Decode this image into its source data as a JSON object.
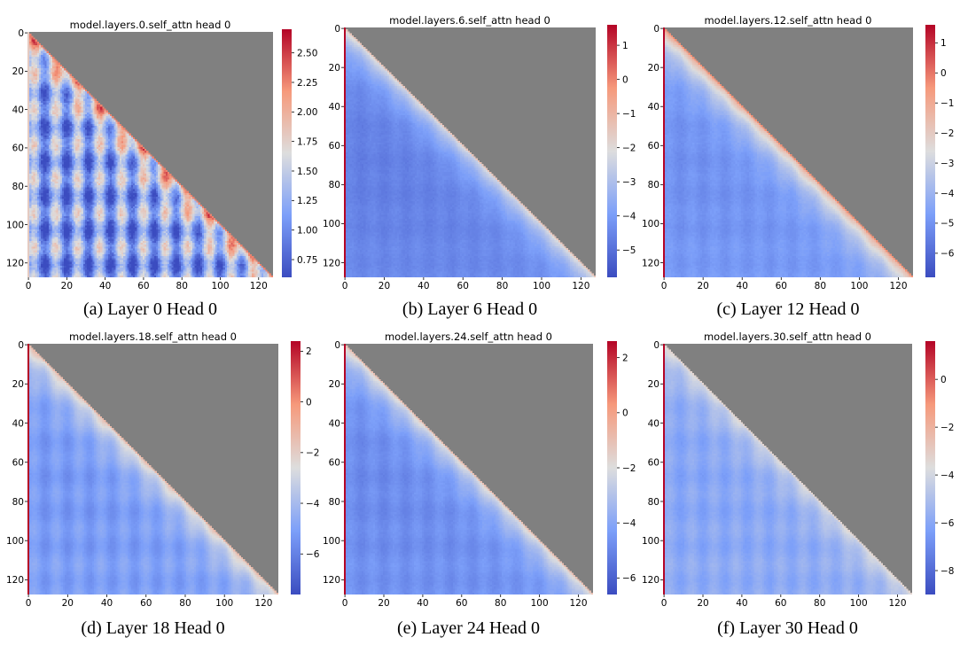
{
  "chart_data": [
    {
      "type": "heatmap",
      "title": "model.layers.0.self_attn head 0",
      "caption": "(a) Layer 0 Head 0",
      "size": 128,
      "xticks": [
        0,
        20,
        40,
        60,
        80,
        100,
        120
      ],
      "yticks": [
        0,
        20,
        40,
        60,
        80,
        100,
        120
      ],
      "colorbar": {
        "vmin": 0.6,
        "vmax": 2.7,
        "ticks": [
          0.75,
          1.0,
          1.25,
          1.5,
          1.75,
          2.0,
          2.25,
          2.5
        ],
        "tick_labels": [
          "0.75",
          "1.00",
          "1.25",
          "1.50",
          "1.75",
          "2.00",
          "2.25",
          "2.50"
        ]
      },
      "pattern": {
        "diag": 2.05,
        "lower": 1.15,
        "firstcol": 1.8,
        "stripes": 0.45,
        "noise": 0.25
      },
      "masked": "upper-triangle"
    },
    {
      "type": "heatmap",
      "title": "model.layers.6.self_attn head 0",
      "caption": "(b) Layer 6 Head 0",
      "size": 128,
      "xticks": [
        0,
        20,
        40,
        60,
        80,
        100,
        120
      ],
      "yticks": [
        0,
        20,
        40,
        60,
        80,
        100,
        120
      ],
      "colorbar": {
        "vmin": -5.8,
        "vmax": 1.6,
        "ticks": [
          1,
          0,
          -1,
          -2,
          -3,
          -4,
          -5
        ],
        "tick_labels": [
          "1",
          "0",
          "−1",
          "−2",
          "−3",
          "−4",
          "−5"
        ]
      },
      "pattern": {
        "diag": -1.6,
        "lower": -4.4,
        "firstcol": 1.6,
        "stripes": 0.1,
        "noise": 0.18
      },
      "masked": "upper-triangle"
    },
    {
      "type": "heatmap",
      "title": "model.layers.12.self_attn head 0",
      "caption": "(c) Layer 12 Head 0",
      "size": 128,
      "xticks": [
        0,
        20,
        40,
        60,
        80,
        100,
        120
      ],
      "yticks": [
        0,
        20,
        40,
        60,
        80,
        100,
        120
      ],
      "colorbar": {
        "vmin": -6.8,
        "vmax": 1.6,
        "ticks": [
          1,
          0,
          -1,
          -2,
          -3,
          -4,
          -5,
          -6
        ],
        "tick_labels": [
          "1",
          "0",
          "−1",
          "−2",
          "−3",
          "−4",
          "−5",
          "−6"
        ]
      },
      "pattern": {
        "diag": -0.6,
        "lower": -4.8,
        "firstcol": 1.6,
        "stripes": 0.15,
        "noise": 0.2
      },
      "masked": "upper-triangle"
    },
    {
      "type": "heatmap",
      "title": "model.layers.18.self_attn head 0",
      "caption": "(d) Layer 18 Head 0",
      "size": 128,
      "xticks": [
        0,
        20,
        40,
        60,
        80,
        100,
        120
      ],
      "yticks": [
        0,
        20,
        40,
        60,
        80,
        100,
        120
      ],
      "colorbar": {
        "vmin": -7.6,
        "vmax": 2.4,
        "ticks": [
          2,
          0,
          -2,
          -4,
          -6
        ],
        "tick_labels": [
          "2",
          "0",
          "−2",
          "−4",
          "−6"
        ]
      },
      "pattern": {
        "diag": -1.5,
        "lower": -5.0,
        "firstcol": 2.4,
        "stripes": 0.35,
        "noise": 0.2
      },
      "masked": "upper-triangle"
    },
    {
      "type": "heatmap",
      "title": "model.layers.24.self_attn head 0",
      "caption": "(e) Layer 24 Head 0",
      "size": 128,
      "xticks": [
        0,
        20,
        40,
        60,
        80,
        100,
        120
      ],
      "yticks": [
        0,
        20,
        40,
        60,
        80,
        100,
        120
      ],
      "colorbar": {
        "vmin": -6.6,
        "vmax": 2.6,
        "ticks": [
          2,
          0,
          -2,
          -4,
          -6
        ],
        "tick_labels": [
          "2",
          "0",
          "−2",
          "−4",
          "−6"
        ]
      },
      "pattern": {
        "diag": -1.2,
        "lower": -4.6,
        "firstcol": 2.6,
        "stripes": 0.2,
        "noise": 0.2
      },
      "masked": "upper-triangle"
    },
    {
      "type": "heatmap",
      "title": "model.layers.30.self_attn head 0",
      "caption": "(f) Layer 30 Head 0",
      "size": 128,
      "xticks": [
        0,
        20,
        40,
        60,
        80,
        100,
        120
      ],
      "yticks": [
        0,
        20,
        40,
        60,
        80,
        100,
        120
      ],
      "colorbar": {
        "vmin": -9.0,
        "vmax": 1.6,
        "ticks": [
          0,
          -2,
          -4,
          -6,
          -8
        ],
        "tick_labels": [
          "0",
          "−2",
          "−4",
          "−6",
          "−8"
        ]
      },
      "pattern": {
        "diag": -3.5,
        "lower": -5.8,
        "firstcol": 1.6,
        "stripes": 0.3,
        "noise": 0.22
      },
      "masked": "upper-triangle"
    }
  ],
  "colors": {
    "masked": "#808080",
    "cmap": "coolwarm"
  }
}
